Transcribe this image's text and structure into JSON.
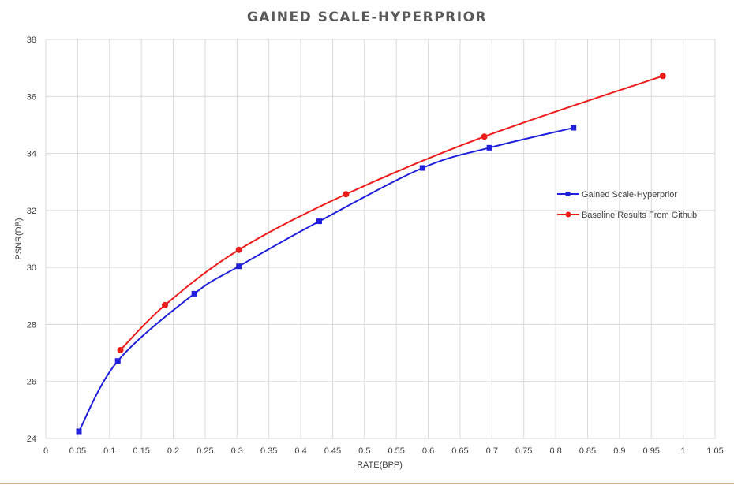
{
  "chart_data": {
    "type": "line",
    "title": "GAINED SCALE-HYPERPRIOR",
    "xlabel": "RATE(BPP)",
    "ylabel": "PSNR(DB)",
    "xlim": [
      0,
      1.05
    ],
    "ylim": [
      24,
      38
    ],
    "x_ticks": [
      "0",
      "0.05",
      "0.1",
      "0.15",
      "0.2",
      "0.25",
      "0.3",
      "0.35",
      "0.4",
      "0.45",
      "0.5",
      "0.55",
      "0.6",
      "0.65",
      "0.7",
      "0.75",
      "0.8",
      "0.85",
      "0.9",
      "0.95",
      "1",
      "1.05"
    ],
    "y_ticks": [
      "24",
      "26",
      "28",
      "30",
      "32",
      "34",
      "36",
      "38"
    ],
    "grid": true,
    "legend_position": "right",
    "series": [
      {
        "name": "Gained Scale-Hyperprior",
        "color": "#1f1fdc",
        "marker": "square",
        "points": [
          [
            0.052,
            24.25
          ],
          [
            0.113,
            26.72
          ],
          [
            0.233,
            29.08
          ],
          [
            0.303,
            30.04
          ],
          [
            0.429,
            31.62
          ],
          [
            0.591,
            33.49
          ],
          [
            0.696,
            34.2
          ],
          [
            0.828,
            34.9
          ]
        ]
      },
      {
        "name": "Baseline Results From Github",
        "color": "#ee1b1b",
        "marker": "circle",
        "points": [
          [
            0.117,
            27.1
          ],
          [
            0.187,
            28.68
          ],
          [
            0.303,
            30.62
          ],
          [
            0.471,
            32.57
          ],
          [
            0.688,
            34.59
          ],
          [
            0.968,
            36.72
          ]
        ]
      }
    ]
  }
}
